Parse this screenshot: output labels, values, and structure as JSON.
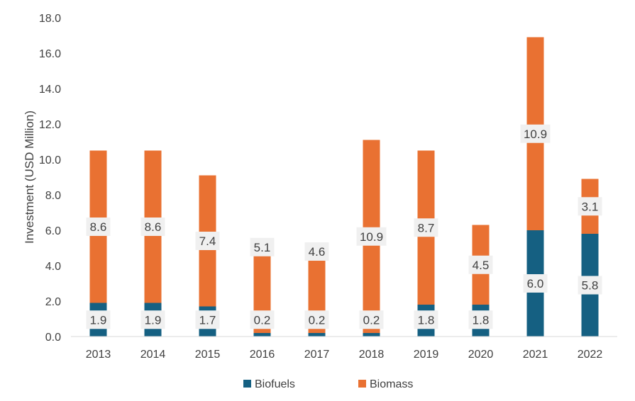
{
  "chart_data": {
    "type": "bar",
    "stacked": true,
    "title": "",
    "xlabel": "",
    "ylabel": "Investment (USD Million)",
    "ylim": [
      0,
      18
    ],
    "yticks": [
      "0.0",
      "2.0",
      "4.0",
      "6.0",
      "8.0",
      "10.0",
      "12.0",
      "14.0",
      "16.0",
      "18.0"
    ],
    "categories": [
      "2013",
      "2014",
      "2015",
      "2016",
      "2017",
      "2018",
      "2019",
      "2020",
      "2021",
      "2022"
    ],
    "series": [
      {
        "name": "Biofuels",
        "color": "#156082",
        "values": [
          1.9,
          1.9,
          1.7,
          0.2,
          0.2,
          0.2,
          1.8,
          1.8,
          6.0,
          5.8
        ],
        "labels": [
          "1.9",
          "1.9",
          "1.7",
          "0.2",
          "0.2",
          "0.2",
          "1.8",
          "1.8",
          "6.0",
          "5.8"
        ]
      },
      {
        "name": "Biomass",
        "color": "#E97132",
        "values": [
          8.6,
          8.6,
          7.4,
          5.1,
          4.6,
          10.9,
          8.7,
          4.5,
          10.9,
          3.1
        ],
        "labels": [
          "8.6",
          "8.6",
          "7.4",
          "5.1",
          "4.6",
          "10.9",
          "8.7",
          "4.5",
          "10.9",
          "3.1"
        ]
      }
    ],
    "grid": false,
    "legend_position": "bottom",
    "data_label_background": "#f0f0f0"
  }
}
